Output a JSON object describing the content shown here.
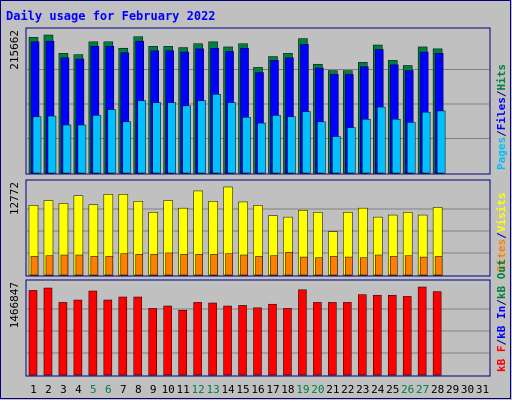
{
  "colors": {
    "background": "#c0c0c0",
    "frame_dark": "#000080",
    "title": "#0000ff",
    "hits": "#008040",
    "files": "#0000ff",
    "pages": "#00c0ff",
    "visits": "#ffff00",
    "sites": "#ff8000",
    "kbin": "#ff0000",
    "weekday": "#000000",
    "weekend": "#008040",
    "gridline": "#808080"
  },
  "chart_data": {
    "type": "bar",
    "title": "Daily usage for February 2022",
    "categories": [
      "1",
      "2",
      "3",
      "4",
      "5",
      "6",
      "7",
      "8",
      "9",
      "10",
      "11",
      "12",
      "13",
      "14",
      "15",
      "16",
      "17",
      "18",
      "19",
      "20",
      "21",
      "22",
      "23",
      "24",
      "25",
      "26",
      "27",
      "28",
      "29",
      "30",
      "31"
    ],
    "weekend_days": [
      "5",
      "6",
      "12",
      "13",
      "19",
      "20",
      "26",
      "27"
    ],
    "days_with_data": 28,
    "panels": [
      {
        "id": "hits-files-pages",
        "ymax_label": "215662",
        "ymax": 215662,
        "legend": [
          {
            "text": "Pages",
            "color": "#00c0ff"
          },
          {
            "text": "/",
            "color": "#000080"
          },
          {
            "text": "Files",
            "color": "#0000ff"
          },
          {
            "text": "/",
            "color": "#000080"
          },
          {
            "text": "Hits",
            "color": "#008040"
          }
        ],
        "series": [
          {
            "name": "Hits",
            "color": "#008040",
            "values": [
              212000,
              215662,
              187000,
              185000,
              205000,
              205000,
              195000,
              213000,
              198000,
              198000,
              196000,
              202000,
              205000,
              197000,
              202000,
              165000,
              182000,
              187000,
              210000,
              170000,
              160000,
              160000,
              173000,
              200000,
              176000,
              168000,
              197000,
              194000
            ]
          },
          {
            "name": "Files",
            "color": "#0000ff",
            "values": [
              205000,
              206000,
              180000,
              178000,
              198000,
              198000,
              188000,
              206000,
              191000,
              191000,
              189000,
              194000,
              195000,
              190000,
              195000,
              157000,
              176000,
              180000,
              201000,
              164000,
              154000,
              154000,
              166000,
              193000,
              169000,
              160000,
              189000,
              187000
            ]
          },
          {
            "name": "Pages",
            "color": "#00c0ff",
            "values": [
              88000,
              89000,
              75000,
              75000,
              90000,
              99000,
              80000,
              113000,
              110000,
              110000,
              105000,
              113000,
              123000,
              110000,
              87000,
              78000,
              90000,
              88000,
              96000,
              80000,
              57000,
              71000,
              84000,
              103000,
              84000,
              79000,
              95000,
              97000
            ]
          }
        ]
      },
      {
        "id": "visits-sites",
        "ymax_label": "12772",
        "ymax": 12772,
        "legend": [
          {
            "text": "Sites",
            "color": "#ff8000"
          },
          {
            "text": "/",
            "color": "#000080"
          },
          {
            "text": "Visits",
            "color": "#ffff00"
          }
        ],
        "series": [
          {
            "name": "Visits",
            "color": "#ffff00",
            "values": [
              10100,
              10800,
              10400,
              11500,
              10200,
              11700,
              11700,
              10700,
              9100,
              10800,
              9700,
              12200,
              10700,
              12772,
              10600,
              10100,
              8600,
              8400,
              9400,
              9100,
              6300,
              9100,
              9700,
              8400,
              8700,
              9100,
              8700,
              9800
            ]
          },
          {
            "name": "Sites",
            "color": "#ff8000",
            "values": [
              2700,
              2800,
              2900,
              2900,
              2700,
              2700,
              3100,
              3000,
              3000,
              3200,
              3000,
              3000,
              3000,
              3100,
              2900,
              2700,
              2800,
              3300,
              2600,
              2500,
              2700,
              2600,
              2500,
              2900,
              2700,
              2800,
              2600,
              2700
            ]
          }
        ]
      },
      {
        "id": "kbytes",
        "ymax_label": "1466847",
        "ymax": 1466847,
        "legend": [
          {
            "text": "kB F",
            "color": "#ff0000"
          },
          {
            "text": "/",
            "color": "#000080"
          },
          {
            "text": "kB In",
            "color": "#0000ff"
          },
          {
            "text": "/",
            "color": "#000080"
          },
          {
            "text": "kB Out",
            "color": "#008040"
          }
        ],
        "series": [
          {
            "name": "kB F",
            "color": "#ff0000",
            "values": [
              1410000,
              1450000,
              1210000,
              1250000,
              1400000,
              1250000,
              1300000,
              1300000,
              1110000,
              1150000,
              1080000,
              1210000,
              1200000,
              1150000,
              1160000,
              1120000,
              1180000,
              1110000,
              1420000,
              1210000,
              1210000,
              1210000,
              1340000,
              1330000,
              1330000,
              1310000,
              1466847,
              1390000
            ]
          }
        ]
      }
    ]
  }
}
